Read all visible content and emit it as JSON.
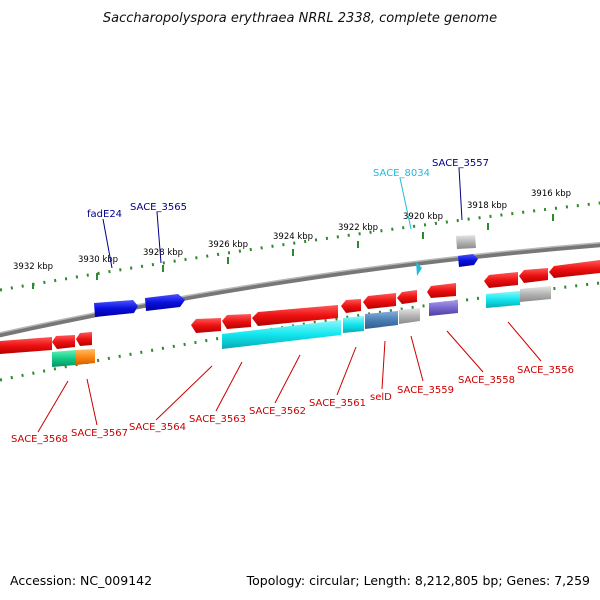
{
  "title": "Saccharopolyspora erythraea NRRL 2338, complete genome",
  "footer": {
    "accession": "Accession: NC_009142",
    "summary": "Topology: circular; Length: 8,212,805 bp; Genes: 7,259"
  },
  "colors": {
    "backbone": "#8a8a8a",
    "tick": "#2f8a2f",
    "gene_red": "#ee1111",
    "gene_blue": "#0a10dd",
    "cyan": "#11e6ee",
    "steel": "#4a7fb5",
    "gray": "#b4b4b4",
    "purple": "#7766cc",
    "teal": "#11cc88",
    "orange": "#ff8811",
    "label_red": "#cc0000",
    "label_navy": "#000088",
    "label_cyan": "#22bbdd"
  },
  "ticks": [
    {
      "label": "3932 kbp"
    },
    {
      "label": "3930 kbp"
    },
    {
      "label": "3928 kbp"
    },
    {
      "label": "3926 kbp"
    },
    {
      "label": "3924 kbp"
    },
    {
      "label": "3922 kbp"
    },
    {
      "label": "3920 kbp"
    },
    {
      "label": "3918 kbp"
    },
    {
      "label": "3916 kbp"
    }
  ],
  "genes": {
    "top": [
      {
        "label": "fadE24",
        "color": "label_navy"
      },
      {
        "label": "SACE_3565",
        "color": "label_navy"
      },
      {
        "label": "SACE_8034",
        "color": "label_cyan"
      },
      {
        "label": "SACE_3557",
        "color": "label_navy"
      }
    ],
    "bottom": [
      {
        "label": "SACE_3568"
      },
      {
        "label": "SACE_3567"
      },
      {
        "label": "SACE_3564"
      },
      {
        "label": "SACE_3563"
      },
      {
        "label": "SACE_3562"
      },
      {
        "label": "SACE_3561"
      },
      {
        "label": "selD"
      },
      {
        "label": "SACE_3559"
      },
      {
        "label": "SACE_3558"
      },
      {
        "label": "SACE_3556"
      }
    ]
  }
}
